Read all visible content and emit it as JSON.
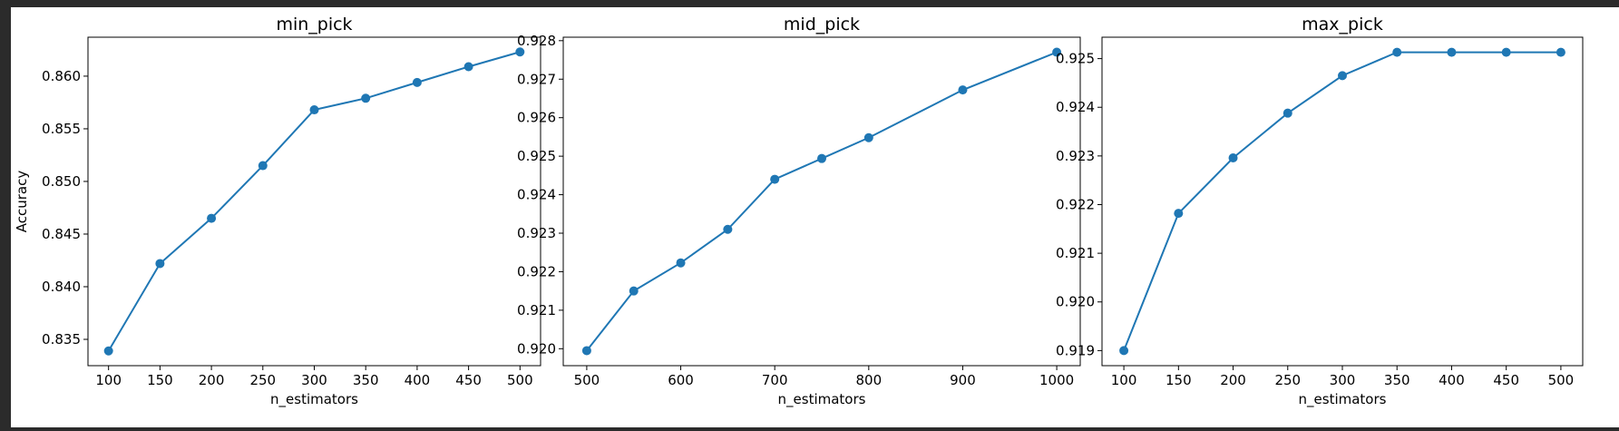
{
  "figure": {
    "background": "#ffffff",
    "outer_background": "#2b2b2b",
    "line_color": "#1f77b4"
  },
  "chart_data": [
    {
      "type": "line",
      "title": "min_pick",
      "xlabel": "n_estimators",
      "ylabel": "Accuracy",
      "marker": "circle",
      "grid": false,
      "x": [
        100,
        150,
        200,
        250,
        300,
        350,
        400,
        450,
        500
      ],
      "y": [
        0.8339,
        0.8422,
        0.8465,
        0.8515,
        0.8568,
        0.8579,
        0.8594,
        0.8609,
        0.8623
      ],
      "xticks": [
        100,
        150,
        200,
        250,
        300,
        350,
        400,
        450,
        500
      ],
      "xtick_labels": [
        "100",
        "150",
        "200",
        "250",
        "300",
        "350",
        "400",
        "450",
        "500"
      ],
      "yticks": [
        0.835,
        0.84,
        0.845,
        0.85,
        0.855,
        0.86
      ],
      "ytick_labels": [
        "0.835",
        "0.840",
        "0.845",
        "0.850",
        "0.855",
        "0.860"
      ],
      "xlim": [
        80,
        520
      ],
      "ylim": [
        0.8325,
        0.8637
      ]
    },
    {
      "type": "line",
      "title": "mid_pick",
      "xlabel": "n_estimators",
      "ylabel": "",
      "marker": "circle",
      "grid": false,
      "x": [
        500,
        550,
        600,
        650,
        700,
        750,
        800,
        900,
        1000
      ],
      "y": [
        0.91995,
        0.9215,
        0.92223,
        0.9231,
        0.9244,
        0.92494,
        0.92548,
        0.92672,
        0.9277
      ],
      "xticks": [
        500,
        600,
        700,
        800,
        900,
        1000
      ],
      "xtick_labels": [
        "500",
        "600",
        "700",
        "800",
        "900",
        "1000"
      ],
      "yticks": [
        0.92,
        0.921,
        0.922,
        0.923,
        0.924,
        0.925,
        0.926,
        0.927,
        0.928
      ],
      "ytick_labels": [
        "0.920",
        "0.921",
        "0.922",
        "0.923",
        "0.924",
        "0.925",
        "0.926",
        "0.927",
        "0.928"
      ],
      "xlim": [
        475,
        1025
      ],
      "ylim": [
        0.91956,
        0.92809
      ]
    },
    {
      "type": "line",
      "title": "max_pick",
      "xlabel": "n_estimators",
      "ylabel": "",
      "marker": "circle",
      "grid": false,
      "x": [
        100,
        150,
        200,
        250,
        300,
        350,
        400,
        450,
        500
      ],
      "y": [
        0.919,
        0.92182,
        0.92296,
        0.92388,
        0.92465,
        0.92513,
        0.92513,
        0.92513,
        0.92513
      ],
      "xticks": [
        100,
        150,
        200,
        250,
        300,
        350,
        400,
        450,
        500
      ],
      "xtick_labels": [
        "100",
        "150",
        "200",
        "250",
        "300",
        "350",
        "400",
        "450",
        "500"
      ],
      "yticks": [
        0.919,
        0.92,
        0.921,
        0.922,
        0.923,
        0.924,
        0.925
      ],
      "ytick_labels": [
        "0.919",
        "0.920",
        "0.921",
        "0.922",
        "0.923",
        "0.924",
        "0.925"
      ],
      "xlim": [
        80,
        520
      ],
      "ylim": [
        0.91869,
        0.92544
      ]
    }
  ]
}
